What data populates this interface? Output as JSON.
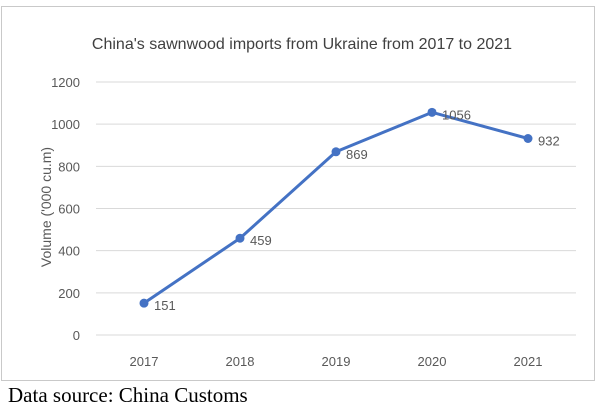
{
  "chart_data": {
    "type": "line",
    "title": "China's sawnwood imports from Ukraine from 2017 to 2021",
    "xlabel": "",
    "ylabel": "Volume ('000 cu.m)",
    "categories": [
      "2017",
      "2018",
      "2019",
      "2020",
      "2021"
    ],
    "series": [
      {
        "values": [
          151,
          459,
          869,
          1056,
          932
        ],
        "data_labels": [
          "151",
          "459",
          "869",
          "1056",
          "932"
        ]
      }
    ],
    "ylim": [
      0,
      1200
    ],
    "yticks": [
      "0",
      "200",
      "400",
      "600",
      "800",
      "1000",
      "1200"
    ],
    "grid": "horizontal",
    "legend": "none",
    "colors": {
      "line": "#4472c4",
      "grid": "#d9d9d9",
      "text": "#595959"
    }
  },
  "source_note": "Data source: China Customs"
}
